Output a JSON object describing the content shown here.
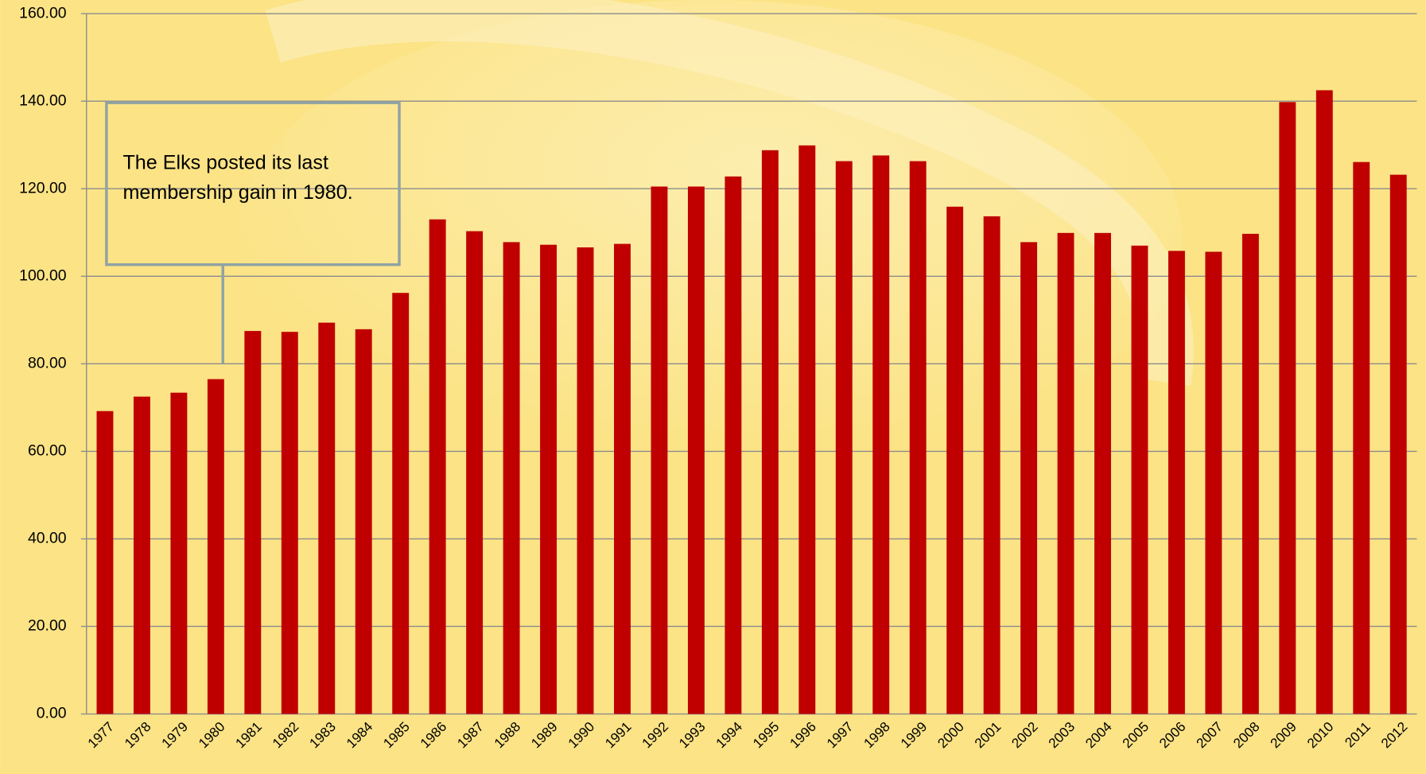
{
  "chart_data": {
    "type": "bar",
    "annotation": [
      "The Elks posted its last",
      "membership gain in 1980."
    ],
    "categories": [
      "1977",
      "1978",
      "1979",
      "1980",
      "1981",
      "1982",
      "1983",
      "1984",
      "1985",
      "1986",
      "1987",
      "1988",
      "1989",
      "1990",
      "1991",
      "1992",
      "1993",
      "1994",
      "1995",
      "1996",
      "1997",
      "1998",
      "1999",
      "2000",
      "2001",
      "2002",
      "2003",
      "2004",
      "2005",
      "2006",
      "2007",
      "2008",
      "2009",
      "2010",
      "2011",
      "2012"
    ],
    "values": [
      69.2,
      72.5,
      73.4,
      76.5,
      87.5,
      87.3,
      89.4,
      87.9,
      96.2,
      113.0,
      110.3,
      107.8,
      107.2,
      106.6,
      107.4,
      120.5,
      120.5,
      122.8,
      128.8,
      129.9,
      126.3,
      127.6,
      126.3,
      115.9,
      113.7,
      107.8,
      109.9,
      109.9,
      107.0,
      105.8,
      105.6,
      109.7,
      139.8,
      142.5,
      126.1,
      123.2
    ],
    "color": "#c00000",
    "ylim": [
      0,
      160
    ],
    "yticks": [
      {
        "value": 0,
        "label": "0.00"
      },
      {
        "value": 20,
        "label": "20.00"
      },
      {
        "value": 40,
        "label": "40.00"
      },
      {
        "value": 60,
        "label": "60.00"
      },
      {
        "value": 80,
        "label": "80.00"
      },
      {
        "value": 100,
        "label": "100.00"
      },
      {
        "value": 120,
        "label": "120.00"
      },
      {
        "value": 140,
        "label": "140.00"
      },
      {
        "value": 160,
        "label": "160.00"
      }
    ],
    "grid": true
  }
}
